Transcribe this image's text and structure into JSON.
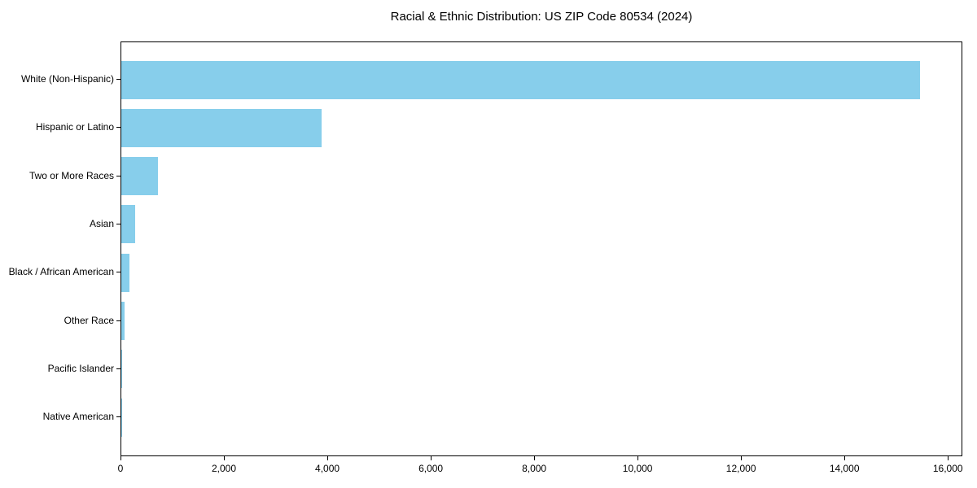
{
  "chart_data": {
    "type": "bar",
    "orientation": "horizontal",
    "title": "Racial & Ethnic Distribution: US ZIP Code 80534 (2024)",
    "categories": [
      "White (Non-Hispanic)",
      "Hispanic or Latino",
      "Two or More Races",
      "Asian",
      "Black / African American",
      "Other Race",
      "Pacific Islander",
      "Native American"
    ],
    "values": [
      15450,
      3870,
      710,
      275,
      150,
      70,
      15,
      5
    ],
    "xlabel": "",
    "ylabel": "",
    "xlim": [
      0,
      16280
    ],
    "xtick_values": [
      0,
      2000,
      4000,
      6000,
      8000,
      10000,
      12000,
      14000,
      16000
    ],
    "xtick_labels": [
      "0",
      "2,000",
      "4,000",
      "6,000",
      "8,000",
      "10,000",
      "12,000",
      "14,000",
      "16,000"
    ],
    "bar_color": "#87CEEB",
    "axis_color": "#000000",
    "text_color": "#000000",
    "grid": false,
    "legend_position": "none"
  }
}
